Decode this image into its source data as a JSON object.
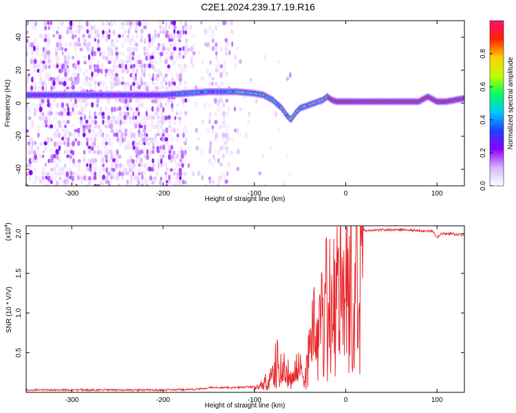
{
  "title": "C2E1.2024.239.17.19.R16",
  "chart_data": [
    {
      "type": "heatmap",
      "xlabel": "Height of straight line (km)",
      "ylabel": "Frequency (Hz)",
      "xlim": [
        -350,
        130
      ],
      "ylim": [
        -50,
        50
      ],
      "xticks": [
        -300,
        -200,
        -100,
        0,
        100
      ],
      "yticks": [
        -40,
        -20,
        0,
        20,
        40
      ],
      "colorbar": {
        "label": "Normalized spectral amplitude",
        "range": [
          0,
          1
        ],
        "ticks": [
          0.0,
          0.2,
          0.4,
          0.6,
          0.8
        ],
        "colors": [
          "#ffffff",
          "#d8b4fe",
          "#8b00ff",
          "#2040ff",
          "#00c8ff",
          "#00ff60",
          "#c0ff00",
          "#ffd000",
          "#ff2000",
          "#ff1070"
        ]
      },
      "ridge": {
        "x": [
          -350,
          -300,
          -250,
          -200,
          -150,
          -120,
          -100,
          -90,
          -80,
          -70,
          -65,
          -60,
          -55,
          -50,
          -40,
          -30,
          -25,
          -20,
          -15,
          -10,
          0,
          20,
          50,
          80,
          90,
          100,
          110,
          130
        ],
        "y": [
          5,
          5,
          5,
          5,
          7,
          7,
          6,
          5,
          2,
          -3,
          -7,
          -10,
          -6,
          -3,
          -1,
          1,
          2,
          4,
          2,
          1,
          1,
          1,
          1,
          1,
          4,
          1,
          1,
          3
        ]
      }
    },
    {
      "type": "line",
      "xlabel": "Height of straight line (km)",
      "ylabel": "SNR (10 * V/V)",
      "scale_label": "(x10",
      "scale_exp": "4",
      "xlim": [
        -350,
        130
      ],
      "ylim": [
        0,
        2.1
      ],
      "xticks": [
        -300,
        -200,
        -100,
        0,
        100
      ],
      "yticks": [
        0.5,
        1.0,
        1.5,
        2.0
      ],
      "color": "#e8262a",
      "x": [
        -350,
        -300,
        -250,
        -200,
        -160,
        -150,
        -120,
        -100,
        -90,
        -85,
        -80,
        -75,
        -70,
        -65,
        -60,
        -55,
        -50,
        -45,
        -40,
        -35,
        -30,
        -25,
        -20,
        -15,
        -10,
        -5,
        0,
        10,
        20,
        30,
        40,
        60,
        80,
        95,
        100,
        105,
        115,
        130
      ],
      "y": [
        0.03,
        0.03,
        0.03,
        0.03,
        0.04,
        0.06,
        0.06,
        0.07,
        0.12,
        0.2,
        0.35,
        0.5,
        0.3,
        0.35,
        0.15,
        0.3,
        0.4,
        0.1,
        0.6,
        0.9,
        1.1,
        1.2,
        1.3,
        1.2,
        1.5,
        1.8,
        1.95,
        2.0,
        2.04,
        2.04,
        2.05,
        2.05,
        2.04,
        2.03,
        1.95,
        2.0,
        2.0,
        1.98
      ]
    }
  ]
}
